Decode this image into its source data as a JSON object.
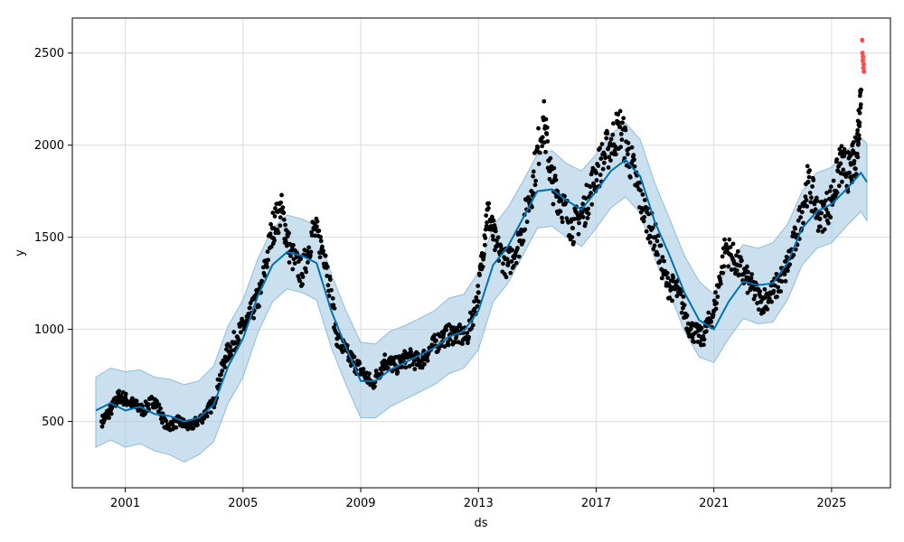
{
  "chart_data": {
    "type": "scatter",
    "title": "",
    "xlabel": "ds",
    "ylabel": "y",
    "xlim": [
      1999.2,
      2027.0
    ],
    "ylim": [
      140,
      2690
    ],
    "grid": true,
    "x_ticks": [
      2001,
      2005,
      2009,
      2013,
      2017,
      2021,
      2025
    ],
    "x_tick_labels": [
      "2001",
      "2005",
      "2009",
      "2013",
      "2017",
      "2021",
      "2025"
    ],
    "y_ticks": [
      500,
      1000,
      1500,
      2000,
      2500
    ],
    "y_tick_labels": [
      "500",
      "1000",
      "1500",
      "2000",
      "2500"
    ],
    "colors": {
      "observed": "#000000",
      "forecast": "#0072b2",
      "uncertainty": "#a6cbe3",
      "outliers": "#ff4d4d",
      "grid": "#dcdcdc"
    },
    "series": [
      {
        "role": "observed",
        "x": [
          2000.2,
          2000.5,
          2000.8,
          2001.2,
          2001.6,
          2002.0,
          2002.4,
          2002.8,
          2003.2,
          2003.6,
          2004.0,
          2004.4,
          2004.8,
          2005.2,
          2005.6,
          2006.0,
          2006.3,
          2006.6,
          2007.0,
          2007.4,
          2007.8,
          2008.2,
          2008.6,
          2009.0,
          2009.4,
          2009.8,
          2010.2,
          2010.6,
          2011.0,
          2011.4,
          2011.8,
          2012.2,
          2012.6,
          2013.0,
          2013.3,
          2013.6,
          2014.0,
          2014.4,
          2014.8,
          2015.2,
          2015.5,
          2015.8,
          2016.2,
          2016.6,
          2017.0,
          2017.4,
          2017.8,
          2018.2,
          2018.6,
          2019.0,
          2019.4,
          2019.8,
          2020.2,
          2020.6,
          2021.0,
          2021.4,
          2021.8,
          2022.2,
          2022.6,
          2023.0,
          2023.4,
          2023.8,
          2024.2,
          2024.6,
          2025.0,
          2025.3,
          2025.6,
          2025.85,
          2026.0
        ],
        "y": [
          500,
          560,
          640,
          600,
          560,
          620,
          470,
          500,
          470,
          520,
          600,
          850,
          960,
          1060,
          1200,
          1550,
          1650,
          1420,
          1300,
          1550,
          1400,
          950,
          850,
          780,
          700,
          830,
          800,
          850,
          820,
          900,
          960,
          980,
          950,
          1200,
          1650,
          1450,
          1350,
          1480,
          1750,
          2150,
          1800,
          1700,
          1550,
          1650,
          1850,
          1980,
          2100,
          1900,
          1650,
          1500,
          1250,
          1200,
          1000,
          950,
          1100,
          1450,
          1350,
          1250,
          1150,
          1200,
          1300,
          1500,
          1800,
          1600,
          1700,
          1900,
          1850,
          1950,
          2300
        ]
      },
      {
        "role": "outliers",
        "x": [
          2026.04,
          2026.05,
          2026.06,
          2026.07,
          2026.08,
          2026.09,
          2026.1
        ],
        "y": [
          2570,
          2500,
          2460,
          2480,
          2420,
          2440,
          2400
        ]
      },
      {
        "role": "forecast",
        "x": [
          2000.0,
          2000.5,
          2001.0,
          2001.5,
          2002.0,
          2002.5,
          2003.0,
          2003.5,
          2004.0,
          2004.5,
          2005.0,
          2005.5,
          2006.0,
          2006.5,
          2007.0,
          2007.5,
          2008.0,
          2008.5,
          2009.0,
          2009.5,
          2010.0,
          2010.5,
          2011.0,
          2011.5,
          2012.0,
          2012.5,
          2013.0,
          2013.5,
          2014.0,
          2014.5,
          2015.0,
          2015.5,
          2016.0,
          2016.5,
          2017.0,
          2017.5,
          2018.0,
          2018.5,
          2019.0,
          2019.5,
          2020.0,
          2020.5,
          2021.0,
          2021.5,
          2022.0,
          2022.5,
          2023.0,
          2023.5,
          2024.0,
          2024.5,
          2025.0,
          2025.5,
          2026.0,
          2026.2
        ],
        "y": [
          560,
          600,
          560,
          580,
          540,
          530,
          500,
          520,
          590,
          800,
          950,
          1180,
          1350,
          1420,
          1400,
          1360,
          1100,
          900,
          720,
          720,
          780,
          820,
          860,
          900,
          960,
          990,
          1100,
          1350,
          1450,
          1600,
          1750,
          1760,
          1700,
          1650,
          1750,
          1860,
          1920,
          1830,
          1580,
          1400,
          1200,
          1050,
          1000,
          1150,
          1260,
          1240,
          1250,
          1360,
          1550,
          1640,
          1680,
          1760,
          1850,
          1800
        ]
      },
      {
        "role": "uncertainty-upper",
        "x": [
          2000.0,
          2000.5,
          2001.0,
          2001.5,
          2002.0,
          2002.5,
          2003.0,
          2003.5,
          2004.0,
          2004.5,
          2005.0,
          2005.5,
          2006.0,
          2006.5,
          2007.0,
          2007.5,
          2008.0,
          2008.5,
          2009.0,
          2009.5,
          2010.0,
          2010.5,
          2011.0,
          2011.5,
          2012.0,
          2012.5,
          2013.0,
          2013.5,
          2014.0,
          2014.5,
          2015.0,
          2015.5,
          2016.0,
          2016.5,
          2017.0,
          2017.5,
          2018.0,
          2018.5,
          2019.0,
          2019.5,
          2020.0,
          2020.5,
          2021.0,
          2021.5,
          2022.0,
          2022.5,
          2023.0,
          2023.5,
          2024.0,
          2024.5,
          2025.0,
          2025.5,
          2026.0,
          2026.2
        ],
        "y": [
          740,
          790,
          770,
          780,
          740,
          730,
          700,
          720,
          800,
          1020,
          1160,
          1380,
          1550,
          1620,
          1600,
          1560,
          1300,
          1100,
          930,
          920,
          990,
          1020,
          1060,
          1100,
          1170,
          1190,
          1310,
          1560,
          1660,
          1800,
          1950,
          1970,
          1900,
          1860,
          1950,
          2060,
          2120,
          2030,
          1790,
          1600,
          1400,
          1260,
          1190,
          1350,
          1460,
          1440,
          1470,
          1570,
          1750,
          1850,
          1880,
          1970,
          2040,
          2010
        ]
      },
      {
        "role": "uncertainty-lower",
        "x": [
          2000.0,
          2000.5,
          2001.0,
          2001.5,
          2002.0,
          2002.5,
          2003.0,
          2003.5,
          2004.0,
          2004.5,
          2005.0,
          2005.5,
          2006.0,
          2006.5,
          2007.0,
          2007.5,
          2008.0,
          2008.5,
          2009.0,
          2009.5,
          2010.0,
          2010.5,
          2011.0,
          2011.5,
          2012.0,
          2012.5,
          2013.0,
          2013.5,
          2014.0,
          2014.5,
          2015.0,
          2015.5,
          2016.0,
          2016.5,
          2017.0,
          2017.5,
          2018.0,
          2018.5,
          2019.0,
          2019.5,
          2020.0,
          2020.5,
          2021.0,
          2021.5,
          2022.0,
          2022.5,
          2023.0,
          2023.5,
          2024.0,
          2024.5,
          2025.0,
          2025.5,
          2026.0,
          2026.2
        ],
        "y": [
          360,
          400,
          360,
          380,
          340,
          320,
          280,
          320,
          390,
          600,
          740,
          980,
          1150,
          1220,
          1200,
          1160,
          900,
          700,
          520,
          520,
          580,
          620,
          660,
          700,
          760,
          790,
          890,
          1150,
          1250,
          1400,
          1550,
          1560,
          1500,
          1450,
          1550,
          1660,
          1720,
          1630,
          1380,
          1200,
          990,
          850,
          820,
          950,
          1060,
          1030,
          1040,
          1160,
          1350,
          1440,
          1470,
          1560,
          1640,
          1590
        ]
      }
    ]
  }
}
